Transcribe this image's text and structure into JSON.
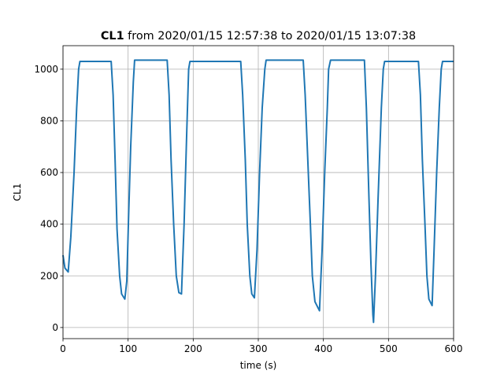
{
  "chart_data": {
    "type": "line",
    "title": [
      "CL1",
      "from 2020/01/15 12:57:38 to 2020/01/15 13:07:38"
    ],
    "xlabel": "time (s)",
    "ylabel": "CL1",
    "x": [
      0,
      3,
      8,
      12,
      17,
      21,
      24,
      26,
      74,
      77,
      80,
      83,
      87,
      90,
      95,
      98,
      101,
      104,
      108,
      110,
      160,
      163,
      166,
      170,
      174,
      178,
      182,
      186,
      190,
      193,
      195,
      273,
      276,
      280,
      283,
      287,
      290,
      294,
      298,
      302,
      306,
      310,
      312,
      369,
      372,
      376,
      380,
      383,
      387,
      392,
      394,
      398,
      402,
      406,
      408,
      411,
      463,
      466,
      470,
      473,
      476,
      477,
      480,
      484,
      489,
      492,
      494,
      546,
      549,
      552,
      556,
      559,
      562,
      566,
      567,
      570,
      574,
      578,
      581,
      583,
      600
    ],
    "values": [
      280,
      230,
      215,
      350,
      600,
      850,
      1000,
      1030,
      1030,
      900,
      650,
      380,
      200,
      130,
      110,
      180,
      450,
      700,
      950,
      1035,
      1035,
      900,
      650,
      400,
      200,
      135,
      130,
      400,
      750,
      1000,
      1030,
      1030,
      900,
      650,
      400,
      200,
      130,
      115,
      300,
      600,
      850,
      1000,
      1035,
      1035,
      900,
      650,
      400,
      200,
      100,
      75,
      65,
      300,
      600,
      850,
      1000,
      1035,
      1035,
      850,
      500,
      250,
      50,
      20,
      200,
      500,
      850,
      1000,
      1030,
      1030,
      900,
      650,
      400,
      200,
      110,
      90,
      85,
      300,
      600,
      850,
      1000,
      1030,
      1030
    ],
    "color": "#1f77b4",
    "xlim": [
      0,
      600
    ],
    "ylim": [
      -43,
      1091
    ],
    "xticks": [
      0,
      100,
      200,
      300,
      400,
      500,
      600
    ],
    "yticks": [
      0,
      200,
      400,
      600,
      800,
      1000
    ],
    "grid": true
  }
}
